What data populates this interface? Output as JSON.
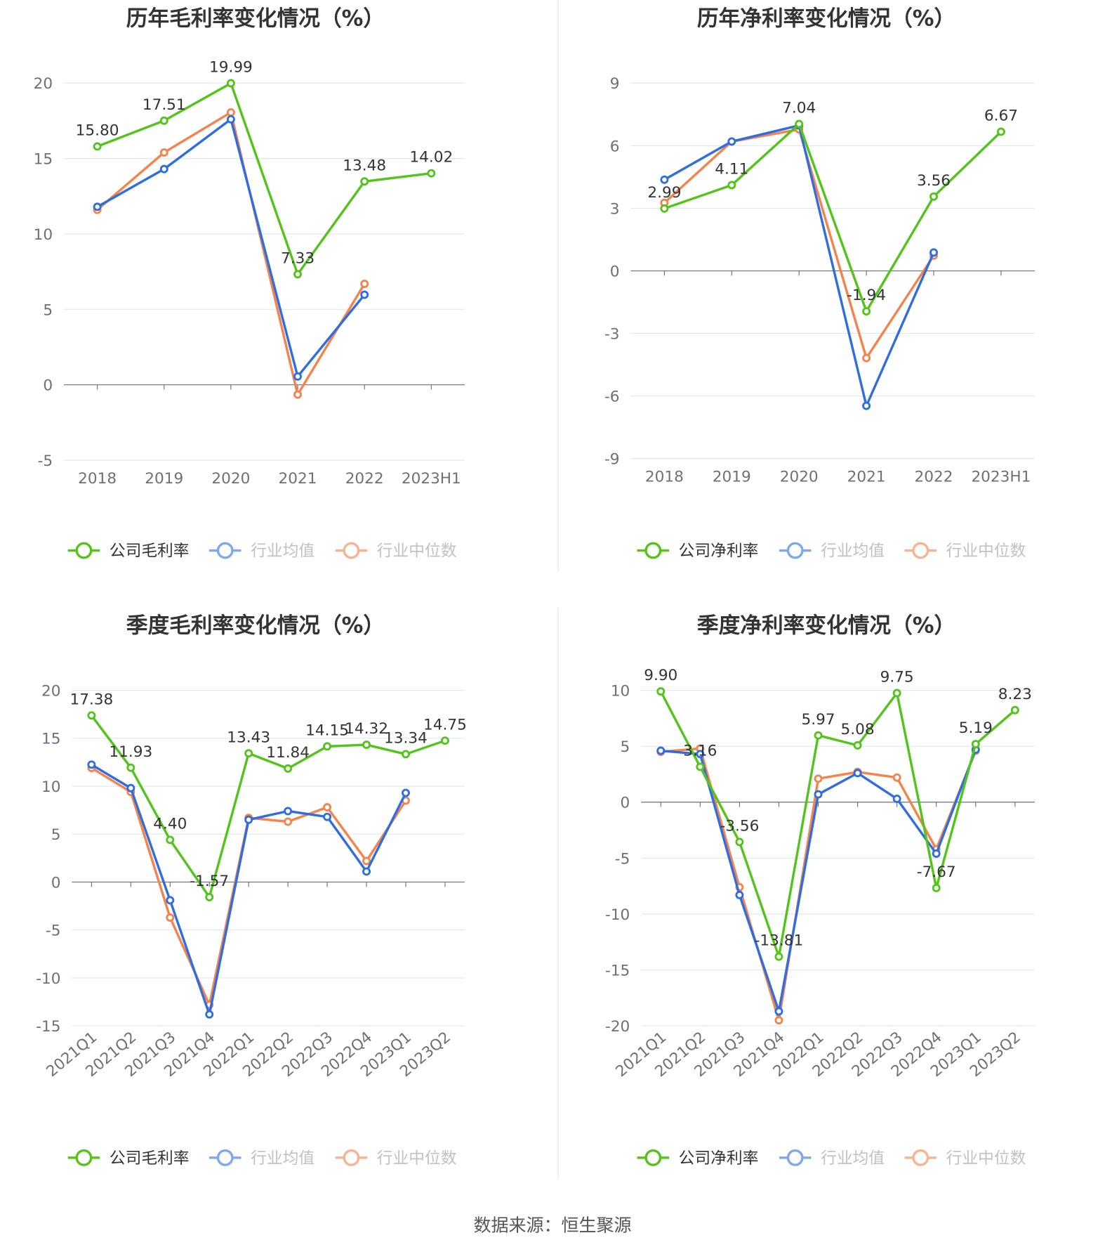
{
  "footer": "数据来源：恒生聚源",
  "colors": {
    "company": "#52c41a",
    "avg": "#2f6de1",
    "median": "#f5834b",
    "grid": "#e0e6f1",
    "axis": "#6e7079"
  },
  "chart_data": [
    {
      "type": "line",
      "title": "历年毛利率变化情况（%）",
      "categories": [
        "2018",
        "2019",
        "2020",
        "2021",
        "2022",
        "2023H1"
      ],
      "ylim": [
        -5,
        20
      ],
      "yticks": [
        -5,
        0,
        5,
        10,
        15,
        20
      ],
      "legend_position": "bottom",
      "series": [
        {
          "name": "公司毛利率",
          "key": "company",
          "values": [
            15.8,
            17.51,
            19.99,
            7.33,
            13.48,
            14.02
          ],
          "labels": [
            "15.80",
            "17.51",
            "19.99",
            "7.33",
            "13.48",
            "14.02"
          ]
        },
        {
          "name": "行业均值",
          "key": "avg",
          "values": [
            11.8,
            14.3,
            17.6,
            0.55,
            5.97,
            null
          ]
        },
        {
          "name": "行业中位数",
          "key": "median",
          "values": [
            11.6,
            15.4,
            18.06,
            -0.65,
            6.69,
            null
          ]
        }
      ]
    },
    {
      "type": "line",
      "title": "历年净利率变化情况（%）",
      "categories": [
        "2018",
        "2019",
        "2020",
        "2021",
        "2022",
        "2023H1"
      ],
      "ylim": [
        -9,
        9
      ],
      "yticks": [
        -9,
        -6,
        -3,
        0,
        3,
        6,
        9
      ],
      "legend_position": "bottom",
      "series": [
        {
          "name": "公司净利率",
          "key": "company",
          "values": [
            2.99,
            4.11,
            7.04,
            -1.94,
            3.56,
            6.67
          ],
          "labels": [
            "2.99",
            "4.11",
            "7.04",
            "-1.94",
            "3.56",
            "6.67"
          ]
        },
        {
          "name": "行业均值",
          "key": "avg",
          "values": [
            4.37,
            6.2,
            6.97,
            -6.47,
            0.88,
            null
          ]
        },
        {
          "name": "行业中位数",
          "key": "median",
          "values": [
            3.26,
            6.2,
            6.78,
            -4.18,
            0.73,
            null
          ]
        }
      ]
    },
    {
      "type": "line",
      "title": "季度毛利率变化情况（%）",
      "categories": [
        "2021Q1",
        "2021Q2",
        "2021Q3",
        "2021Q4",
        "2022Q1",
        "2022Q2",
        "2022Q3",
        "2022Q4",
        "2023Q1",
        "2023Q2"
      ],
      "ylim": [
        -15,
        20
      ],
      "yticks": [
        -15,
        -10,
        -5,
        0,
        5,
        10,
        15,
        20
      ],
      "legend_position": "bottom",
      "series": [
        {
          "name": "公司毛利率",
          "key": "company",
          "values": [
            17.38,
            11.93,
            4.4,
            -1.57,
            13.43,
            11.84,
            14.15,
            14.32,
            13.34,
            14.75
          ],
          "labels": [
            "17.38",
            "11.93",
            "4.40",
            "-1.57",
            "13.43",
            "11.84",
            "14.15",
            "14.32",
            "13.34",
            "14.75"
          ]
        },
        {
          "name": "行业均值",
          "key": "avg",
          "values": [
            12.25,
            9.8,
            -1.9,
            -13.8,
            6.5,
            7.4,
            6.8,
            1.1,
            9.3,
            null
          ]
        },
        {
          "name": "行业中位数",
          "key": "median",
          "values": [
            11.9,
            9.4,
            -3.7,
            -12.8,
            6.7,
            6.3,
            7.8,
            2.2,
            8.5,
            null
          ]
        }
      ]
    },
    {
      "type": "line",
      "title": "季度净利率变化情况（%）",
      "categories": [
        "2021Q1",
        "2021Q2",
        "2021Q3",
        "2021Q4",
        "2022Q1",
        "2022Q2",
        "2022Q3",
        "2022Q4",
        "2023Q1",
        "2023Q2"
      ],
      "ylim": [
        -20,
        10
      ],
      "yticks": [
        -20,
        -15,
        -10,
        -5,
        0,
        5,
        10
      ],
      "legend_position": "bottom",
      "series": [
        {
          "name": "公司净利率",
          "key": "company",
          "values": [
            9.9,
            3.16,
            -3.56,
            -13.81,
            5.97,
            5.08,
            9.75,
            -7.67,
            5.19,
            8.23
          ],
          "labels": [
            "9.90",
            "3.16",
            "-3.56",
            "-13.81",
            "5.97",
            "5.08",
            "9.75",
            "-7.67",
            "5.19",
            "8.23"
          ]
        },
        {
          "name": "行业均值",
          "key": "avg",
          "values": [
            4.6,
            4.3,
            -8.3,
            -18.7,
            0.7,
            2.6,
            0.3,
            -4.6,
            4.7,
            null
          ]
        },
        {
          "name": "行业中位数",
          "key": "median",
          "values": [
            4.5,
            4.8,
            -7.6,
            -19.5,
            2.1,
            2.7,
            2.2,
            -4.2,
            4.6,
            null
          ]
        }
      ]
    }
  ]
}
